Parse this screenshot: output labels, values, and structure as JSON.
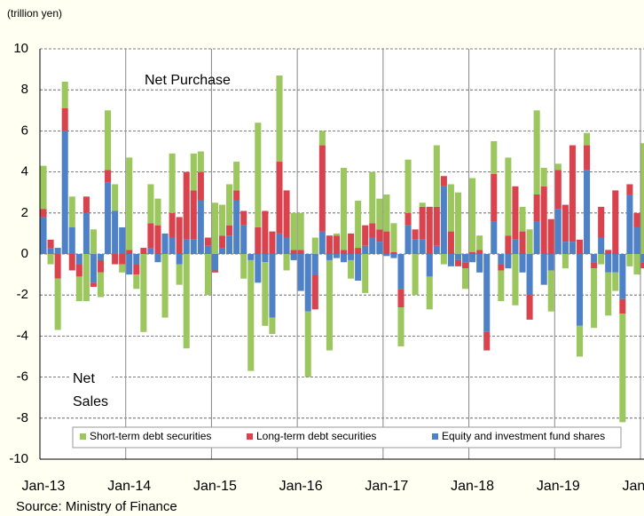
{
  "chart_data": {
    "type": "stacked_bar",
    "y_axis_label": "(trillion yen)",
    "source": "Source: Ministry of Finance",
    "annotations": [
      "Net Purchase",
      "Net",
      "Sales"
    ],
    "categories": [
      "Jan-13",
      null,
      null,
      null,
      null,
      null,
      null,
      null,
      null,
      null,
      null,
      null,
      "Jan-14",
      null,
      null,
      null,
      null,
      null,
      null,
      null,
      null,
      null,
      null,
      null,
      "Jan-15",
      null,
      null,
      null,
      null,
      null,
      null,
      null,
      null,
      null,
      null,
      null,
      "Jan-16",
      null,
      null,
      null,
      null,
      null,
      null,
      null,
      null,
      null,
      null,
      null,
      "Jan-17",
      null,
      null,
      null,
      null,
      null,
      null,
      null,
      null,
      null,
      null,
      null,
      "Jan-18",
      null,
      null,
      null,
      null,
      null,
      null,
      null,
      null,
      null,
      null,
      null,
      "Jan-19",
      null,
      null,
      null,
      null,
      null,
      null,
      null,
      null,
      null,
      null,
      null,
      "Jan-20"
    ],
    "series": [
      {
        "name": "Equity and investment fund shares",
        "color": "#4f81c7",
        "values": [
          1.8,
          0.3,
          0.3,
          6.0,
          1.3,
          -0.5,
          2.0,
          -1.4,
          -0.3,
          3.5,
          2.1,
          1.3,
          -1.0,
          -0.5,
          0.0,
          0.3,
          -0.4,
          1.0,
          0.8,
          -0.5,
          0.7,
          0.7,
          2.6,
          0.4,
          -0.8,
          0.3,
          0.9,
          2.6,
          1.4,
          -0.3,
          -1.4,
          -0.4,
          -3.1,
          1.0,
          0.8,
          -0.3,
          -1.8,
          -2.8,
          -1.0,
          1.1,
          -0.3,
          -0.2,
          -0.4,
          -0.3,
          -1.3,
          0.4,
          0.8,
          0.6,
          -0.1,
          -0.2,
          -1.7,
          1.4,
          0.7,
          0.7,
          -1.1,
          0.4,
          3.3,
          -0.6,
          -0.3,
          -0.4,
          -0.4,
          -0.9,
          -3.8,
          1.6,
          -0.5,
          -0.7,
          0.7,
          -0.9,
          -2.0,
          1.6,
          -1.5,
          -0.8,
          2.2,
          0.6,
          0.6,
          -3.5,
          4.1,
          -0.4,
          0.8,
          -0.9,
          -0.9,
          -2.2,
          2.9,
          1.3,
          -0.4
        ]
      },
      {
        "name": "Long-term debt securities",
        "color": "#d9434e",
        "values": [
          0.4,
          0.4,
          -1.2,
          1.1,
          -0.8,
          -0.6,
          0.8,
          -0.2,
          -0.6,
          0.6,
          -0.5,
          -0.5,
          0.2,
          -0.5,
          0.3,
          1.2,
          1.4,
          0.0,
          1.2,
          1.8,
          3.3,
          2.4,
          1.4,
          0.4,
          -0.1,
          0.6,
          0.5,
          0.5,
          0.7,
          0.0,
          1.3,
          2.1,
          1.1,
          3.5,
          2.3,
          0.2,
          0.2,
          0.0,
          -1.7,
          4.2,
          0.9,
          0.9,
          0.2,
          1.0,
          0.3,
          1.0,
          0.7,
          0.6,
          1.1,
          0.1,
          -0.9,
          0.6,
          0.5,
          1.6,
          2.3,
          1.9,
          0.5,
          1.1,
          -0.3,
          -0.3,
          0.1,
          0.2,
          -0.9,
          2.3,
          -0.3,
          0.9,
          2.6,
          1.1,
          -1.2,
          1.3,
          3.3,
          1.7,
          1.9,
          1.8,
          4.7,
          0.7,
          1.2,
          -0.3,
          1.5,
          0.2,
          3.1,
          -0.7,
          0.5,
          0.7,
          -0.3
        ]
      },
      {
        "name": "Short-term debt securities",
        "color": "#9cc65e",
        "values": [
          2.1,
          -0.5,
          -2.5,
          1.3,
          1.5,
          -1.2,
          -2.3,
          1.2,
          -1.2,
          2.9,
          1.3,
          -0.4,
          4.5,
          -0.7,
          -3.8,
          1.9,
          1.3,
          -3.1,
          2.9,
          -1.0,
          -4.6,
          1.8,
          1.0,
          -2.0,
          2.5,
          1.5,
          2.0,
          1.4,
          -1.2,
          -5.4,
          5.1,
          -3.1,
          -0.8,
          4.2,
          -0.8,
          1.8,
          1.8,
          -3.2,
          0.8,
          0.7,
          -4.4,
          0.1,
          4.0,
          -0.9,
          2.3,
          -1.9,
          2.5,
          1.5,
          1.8,
          1.4,
          -1.9,
          2.6,
          -2.0,
          0.2,
          -1.6,
          3.0,
          -0.5,
          2.3,
          3.0,
          -1.0,
          3.6,
          0.7,
          0.0,
          1.6,
          -1.5,
          3.8,
          -2.5,
          1.2,
          1.2,
          4.1,
          0.9,
          -2.0,
          0.3,
          -0.7,
          0.0,
          -1.5,
          0.6,
          -2.9,
          -0.5,
          -2.1,
          -0.9,
          -5.3,
          -0.6,
          -1.0,
          5.4
        ]
      }
    ],
    "legend_order": [
      2,
      1,
      0
    ],
    "ylim": [
      -10,
      10
    ],
    "yticks": [
      -10,
      -8,
      -6,
      -4,
      -2,
      0,
      2,
      4,
      6,
      8,
      10
    ],
    "grid": true
  }
}
